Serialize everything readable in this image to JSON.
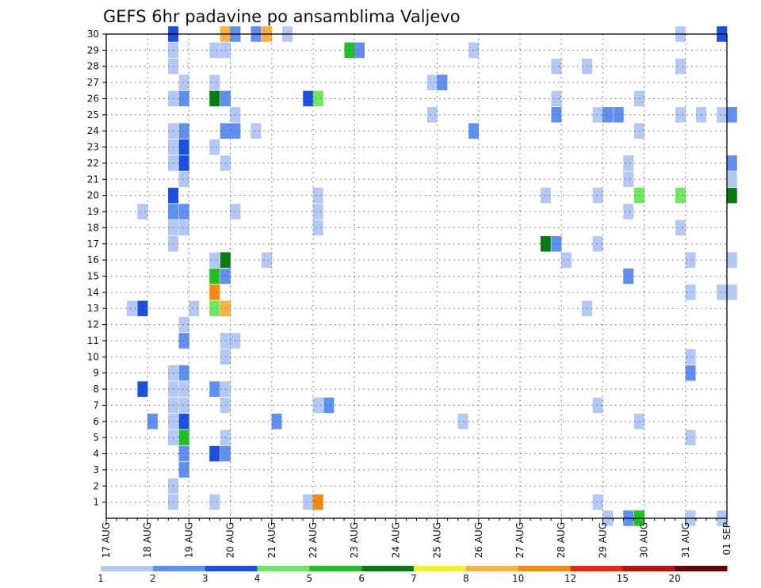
{
  "chart_data": {
    "type": "heatmap",
    "title": "GEFS 6hr padavine po ansamblima Valjevo",
    "y_tick_labels": [
      "1",
      "2",
      "3",
      "4",
      "5",
      "6",
      "7",
      "8",
      "9",
      "10",
      "11",
      "12",
      "13",
      "14",
      "15",
      "16",
      "17",
      "18",
      "19",
      "20",
      "21",
      "22",
      "23",
      "24",
      "25",
      "26",
      "27",
      "28",
      "29",
      "30"
    ],
    "x_tick_labels": [
      "17 AUG",
      "18 AUG",
      "19 AUG",
      "20 AUG",
      "21 AUG",
      "22 AUG",
      "23 AUG",
      "24 AUG",
      "25 AUG",
      "26 AUG",
      "27 AUG",
      "28 AUG",
      "29 AUG",
      "30 AUG",
      "31 AUG",
      "01 SEP"
    ],
    "x_range": [
      0,
      15
    ],
    "y_range": [
      0,
      30
    ],
    "grid": true,
    "colorbar": {
      "labels": [
        "1",
        "2",
        "3",
        "4",
        "5",
        "6",
        "7",
        "8",
        "10",
        "12",
        "15",
        "20"
      ],
      "colors": [
        "#b4c8f5",
        "#5f8ff0",
        "#1a4fe0",
        "#6ee860",
        "#20c020",
        "#0a7a14",
        "#f8f020",
        "#fbb040",
        "#f58a10",
        "#e8280c",
        "#b41408",
        "#6a0000"
      ]
    },
    "cells": [
      [
        1.62,
        30,
        3
      ],
      [
        2.88,
        30,
        8
      ],
      [
        3.12,
        30,
        2
      ],
      [
        3.62,
        30,
        2
      ],
      [
        3.88,
        30,
        8
      ],
      [
        4.38,
        30,
        1
      ],
      [
        13.88,
        30,
        1
      ],
      [
        14.88,
        30,
        3
      ],
      [
        1.62,
        29,
        1
      ],
      [
        2.62,
        29,
        1
      ],
      [
        2.88,
        29,
        1
      ],
      [
        5.88,
        29,
        5
      ],
      [
        6.12,
        29,
        2
      ],
      [
        8.88,
        29,
        1
      ],
      [
        1.62,
        28,
        1
      ],
      [
        10.88,
        28,
        1
      ],
      [
        11.62,
        28,
        1
      ],
      [
        13.88,
        28,
        1
      ],
      [
        1.88,
        27,
        1
      ],
      [
        2.62,
        27,
        1
      ],
      [
        7.88,
        27,
        1
      ],
      [
        8.12,
        27,
        2
      ],
      [
        1.62,
        26,
        1
      ],
      [
        1.88,
        26,
        2
      ],
      [
        2.62,
        26,
        6
      ],
      [
        2.88,
        26,
        2
      ],
      [
        4.88,
        26,
        3
      ],
      [
        5.12,
        26,
        4
      ],
      [
        10.88,
        26,
        1
      ],
      [
        12.88,
        26,
        1
      ],
      [
        3.12,
        25,
        1
      ],
      [
        7.88,
        25,
        1
      ],
      [
        10.88,
        25,
        2
      ],
      [
        11.88,
        25,
        1
      ],
      [
        12.12,
        25,
        2
      ],
      [
        12.38,
        25,
        2
      ],
      [
        13.88,
        25,
        1
      ],
      [
        14.38,
        25,
        1
      ],
      [
        14.88,
        25,
        1
      ],
      [
        15.12,
        25,
        2
      ],
      [
        1.62,
        24,
        1
      ],
      [
        1.88,
        24,
        2
      ],
      [
        2.88,
        24,
        2
      ],
      [
        3.12,
        24,
        2
      ],
      [
        3.62,
        24,
        1
      ],
      [
        8.88,
        24,
        2
      ],
      [
        12.88,
        24,
        1
      ],
      [
        1.62,
        23,
        1
      ],
      [
        1.88,
        23,
        3
      ],
      [
        2.62,
        23,
        1
      ],
      [
        1.62,
        22,
        1
      ],
      [
        1.88,
        22,
        3
      ],
      [
        2.88,
        22,
        1
      ],
      [
        12.62,
        22,
        1
      ],
      [
        15.12,
        22,
        2
      ],
      [
        1.88,
        21,
        1
      ],
      [
        12.62,
        21,
        1
      ],
      [
        15.12,
        21,
        1
      ],
      [
        1.62,
        20,
        3
      ],
      [
        5.12,
        20,
        1
      ],
      [
        10.62,
        20,
        1
      ],
      [
        11.88,
        20,
        1
      ],
      [
        12.88,
        20,
        4
      ],
      [
        13.88,
        20,
        4
      ],
      [
        15.12,
        20,
        6
      ],
      [
        0.88,
        19,
        1
      ],
      [
        1.62,
        19,
        2
      ],
      [
        1.88,
        19,
        2
      ],
      [
        3.12,
        19,
        1
      ],
      [
        5.12,
        19,
        1
      ],
      [
        12.62,
        19,
        1
      ],
      [
        1.62,
        18,
        1
      ],
      [
        1.88,
        18,
        1
      ],
      [
        5.12,
        18,
        1
      ],
      [
        13.88,
        18,
        1
      ],
      [
        1.62,
        17,
        1
      ],
      [
        10.62,
        17,
        6
      ],
      [
        10.88,
        17,
        2
      ],
      [
        11.88,
        17,
        1
      ],
      [
        2.62,
        16,
        1
      ],
      [
        2.88,
        16,
        6
      ],
      [
        3.88,
        16,
        1
      ],
      [
        11.12,
        16,
        1
      ],
      [
        14.12,
        16,
        1
      ],
      [
        15.12,
        16,
        1
      ],
      [
        2.62,
        15,
        5
      ],
      [
        2.88,
        15,
        2
      ],
      [
        12.62,
        15,
        2
      ],
      [
        2.62,
        14,
        9
      ],
      [
        14.12,
        14,
        1
      ],
      [
        14.88,
        14,
        1
      ],
      [
        15.12,
        14,
        1
      ],
      [
        0.62,
        13,
        1
      ],
      [
        0.88,
        13,
        3
      ],
      [
        2.12,
        13,
        1
      ],
      [
        2.62,
        13,
        4
      ],
      [
        2.88,
        13,
        8
      ],
      [
        11.62,
        13,
        1
      ],
      [
        1.88,
        12,
        1
      ],
      [
        1.88,
        11,
        2
      ],
      [
        2.88,
        11,
        1
      ],
      [
        3.12,
        11,
        1
      ],
      [
        2.88,
        10,
        1
      ],
      [
        14.12,
        10,
        1
      ],
      [
        1.62,
        9,
        1
      ],
      [
        1.88,
        9,
        2
      ],
      [
        14.12,
        9,
        2
      ],
      [
        0.88,
        8,
        3
      ],
      [
        1.62,
        8,
        1
      ],
      [
        1.88,
        8,
        1
      ],
      [
        2.62,
        8,
        2
      ],
      [
        2.88,
        8,
        1
      ],
      [
        1.62,
        7,
        1
      ],
      [
        1.88,
        7,
        1
      ],
      [
        2.88,
        7,
        1
      ],
      [
        5.12,
        7,
        1
      ],
      [
        5.38,
        7,
        2
      ],
      [
        11.88,
        7,
        1
      ],
      [
        1.12,
        6,
        2
      ],
      [
        1.62,
        6,
        1
      ],
      [
        1.88,
        6,
        3
      ],
      [
        4.12,
        6,
        2
      ],
      [
        8.62,
        6,
        1
      ],
      [
        12.88,
        6,
        1
      ],
      [
        1.62,
        5,
        1
      ],
      [
        1.88,
        5,
        5
      ],
      [
        2.88,
        5,
        1
      ],
      [
        14.12,
        5,
        1
      ],
      [
        1.88,
        4,
        2
      ],
      [
        2.62,
        4,
        3
      ],
      [
        2.88,
        4,
        2
      ],
      [
        1.88,
        3,
        2
      ],
      [
        1.62,
        2,
        1
      ],
      [
        1.62,
        1,
        1
      ],
      [
        2.62,
        1,
        1
      ],
      [
        4.88,
        1,
        1
      ],
      [
        5.12,
        1,
        9
      ],
      [
        11.88,
        1,
        1
      ],
      [
        12.12,
        0,
        1
      ],
      [
        12.62,
        0,
        2
      ],
      [
        12.88,
        0,
        5
      ],
      [
        14.12,
        0,
        1
      ],
      [
        14.88,
        0,
        1
      ]
    ]
  }
}
